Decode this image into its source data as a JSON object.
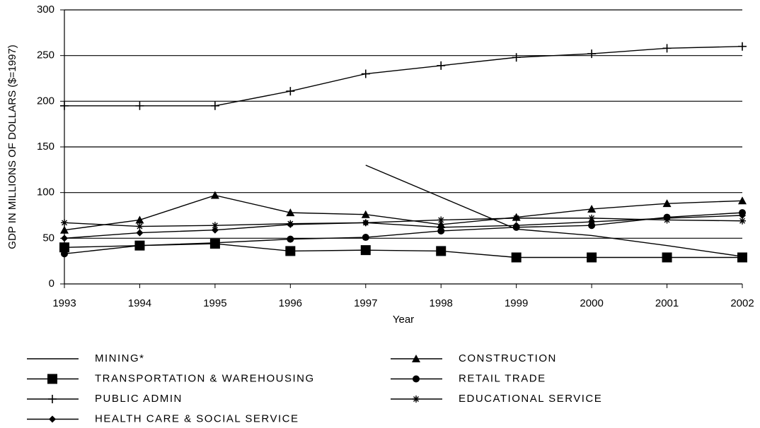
{
  "chart_data": {
    "type": "line",
    "y_label": "GDP IN MILLIONS OF DOLLARS ($=1997)",
    "x_label": "Year",
    "x": [
      1993,
      1994,
      1995,
      1996,
      1997,
      1998,
      1999,
      2000,
      2001,
      2002
    ],
    "xlim": [
      1993,
      2002
    ],
    "xticks": [
      1993,
      1994,
      1995,
      1996,
      1997,
      1998,
      1999,
      2000,
      2001,
      2002
    ],
    "ylim": [
      0,
      300
    ],
    "yticks": [
      0,
      50,
      100,
      150,
      200,
      250,
      300
    ],
    "grid": true,
    "legend": "bottom",
    "series": [
      {
        "name": "MINING*",
        "color": "#000000",
        "marker": "none",
        "values": [
          null,
          null,
          null,
          null,
          130,
          95,
          60,
          53,
          42,
          30
        ]
      },
      {
        "name": "CONSTRUCTION",
        "color": "#000000",
        "marker": "triangle",
        "values": [
          59,
          70,
          97,
          78,
          76,
          65,
          73,
          82,
          88,
          91
        ]
      },
      {
        "name": "TRANSPORTATION & WAREHOUSING",
        "color": "#000000",
        "marker": "square",
        "values": [
          40,
          42,
          44,
          36,
          37,
          36,
          29,
          29,
          29,
          29
        ]
      },
      {
        "name": "RETAIL TRADE",
        "color": "#000000",
        "marker": "circle",
        "values": [
          33,
          42,
          45,
          49,
          51,
          58,
          62,
          64,
          73,
          78
        ]
      },
      {
        "name": "PUBLIC ADMIN",
        "color": "#000000",
        "marker": "plus",
        "values": [
          195,
          195,
          195,
          211,
          230,
          239,
          248,
          252,
          258,
          260
        ]
      },
      {
        "name": "EDUCATIONAL SERVICE",
        "color": "#000000",
        "marker": "star",
        "values": [
          67,
          63,
          64,
          66,
          67,
          70,
          72,
          72,
          70,
          69
        ]
      },
      {
        "name": "HEALTH CARE & SOCIAL SERVICE",
        "color": "#000000",
        "marker": "diamond",
        "values": [
          50,
          56,
          59,
          65,
          67,
          62,
          64,
          68,
          72,
          75
        ]
      }
    ]
  }
}
